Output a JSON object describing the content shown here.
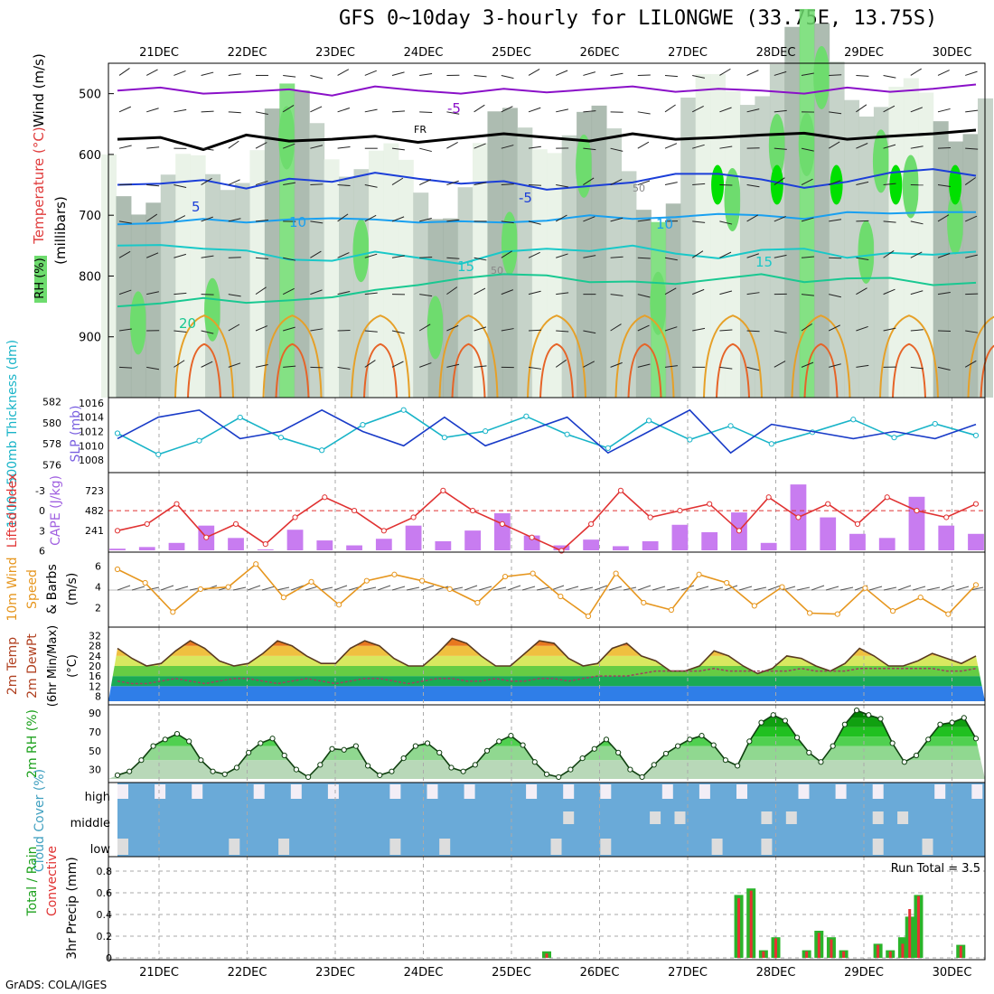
{
  "title": "GFS 0~10day 3-hourly for LILONGWE (33.75E, 13.75S)",
  "credit": "GrADS: COLA/IGES",
  "colors": {
    "rh_light": "#e6f1e4",
    "rh_mid": "#bccbbf",
    "rh_dark": "#9fb0a3",
    "rh_green": "#6edc6e",
    "rh_bright": "#00e000",
    "t_m5": "#8a10c8",
    "t_0": "#000000",
    "t_5": "#1b3ed8",
    "t_10": "#19a0f0",
    "t_15": "#19c8c8",
    "t_20": "#19c891",
    "t_25": "#e6a028",
    "t_30": "#e66428",
    "slp": "#1a3cc8",
    "thick": "#19b4c8",
    "cape_bar": "#c87cf0",
    "li": "#e03232",
    "wind10": "#e6961e",
    "cloud": "#6aaad8",
    "precip_total": "#2ab42a",
    "precip_conv": "#e63232"
  },
  "chart_data": {
    "type": "meteogram",
    "x_ticks": [
      "21DEC",
      "22DEC",
      "23DEC",
      "24DEC",
      "25DEC",
      "26DEC",
      "27DEC",
      "28DEC",
      "29DEC",
      "30DEC"
    ],
    "panels": {
      "upper": {
        "ylabel": "(millibars)",
        "side_labels": [
          "RH (%)",
          "Temperature (°C)",
          "Wind (m/s)"
        ],
        "yticks": [
          500,
          600,
          700,
          800,
          900
        ],
        "ylim": [
          1000,
          450
        ],
        "contour_labels": [
          "-5",
          "FR",
          "5",
          "-5",
          "10",
          "10",
          "15",
          "15",
          "20",
          "50",
          "50"
        ],
        "isotherms": [
          {
            "label": "-5",
            "y": [
              495,
              490,
              500,
              497,
              493,
              503,
              488,
              495,
              500,
              492,
              498,
              493,
              488,
              497,
              492,
              495,
              500,
              490,
              497,
              492,
              485
            ]
          },
          {
            "label": "0",
            "y": [
              575,
              572,
              592,
              568,
              578,
              575,
              570,
              580,
              573,
              566,
              572,
              578,
              566,
              575,
              572,
              568,
              565,
              575,
              570,
              566,
              560
            ]
          },
          {
            "label": "5",
            "y": [
              650,
              648,
              642,
              656,
              640,
              645,
              630,
              640,
              648,
              644,
              658,
              652,
              646,
              632,
              632,
              641,
              655,
              645,
              630,
              624,
              635
            ]
          },
          {
            "label": "10",
            "y": [
              715,
              713,
              706,
              712,
              707,
              705,
              707,
              712,
              710,
              712,
              709,
              700,
              706,
              703,
              698,
              700,
              706,
              695,
              697,
              695,
              695
            ]
          },
          {
            "label": "15",
            "y": [
              750,
              749,
              755,
              758,
              773,
              775,
              760,
              770,
              780,
              760,
              755,
              759,
              750,
              763,
              771,
              757,
              755,
              770,
              762,
              765,
              760
            ]
          },
          {
            "label": "20",
            "y": [
              850,
              845,
              836,
              844,
              840,
              835,
              823,
              815,
              804,
              797,
              799,
              810,
              809,
              813,
              805,
              797,
              810,
              804,
              803,
              815,
              811
            ]
          }
        ]
      },
      "slp_thickness": {
        "ylabel_left": "1000~500mb Thickness (dm)",
        "ylabel_right": "SLP (mb)",
        "thick_ticks": [
          576,
          578,
          580,
          582
        ],
        "slp_ticks": [
          1008,
          1010,
          1012,
          1014,
          1016
        ],
        "slp": [
          1011,
          1014,
          1015,
          1011,
          1012,
          1015,
          1012,
          1010,
          1014,
          1010,
          1012,
          1014,
          1009,
          1012,
          1015,
          1009,
          1013,
          1012,
          1011,
          1012,
          1011,
          1013
        ],
        "thickness": [
          579.0,
          577.0,
          578.3,
          580.5,
          578.6,
          577.4,
          579.8,
          581.2,
          578.6,
          579.2,
          580.6,
          578.9,
          577.6,
          580.2,
          578.4,
          579.7,
          578.0,
          579.1,
          580.3,
          578.6,
          579.9,
          578.8
        ]
      },
      "cape_li": {
        "ylabel_left": "Lifted Index",
        "ylabel_right": "CAPE (J/kg)",
        "li_ticks": [
          "-3",
          "0",
          "3",
          "6"
        ],
        "cape_ticks": [
          241,
          482,
          723
        ],
        "cape": [
          20,
          40,
          90,
          300,
          150,
          10,
          250,
          120,
          60,
          140,
          300,
          110,
          240,
          450,
          180,
          60,
          130,
          50,
          110,
          310,
          220,
          460,
          90,
          800,
          400,
          200,
          150,
          650,
          300,
          200
        ],
        "li": [
          3,
          2,
          -1,
          4,
          2,
          5,
          1,
          -2,
          0,
          3,
          1,
          -3,
          0,
          2,
          4,
          6,
          2,
          -3,
          1,
          0,
          -1,
          3,
          -2,
          1,
          -1,
          2,
          -2,
          0,
          1,
          -1
        ]
      },
      "wind10m": {
        "ylabel": "10m Wind Speed & Barbs (m/s)",
        "yticks": [
          2,
          4,
          6
        ],
        "speed": [
          5.7,
          4.4,
          1.6,
          3.8,
          4.0,
          6.2,
          3.0,
          4.5,
          2.3,
          4.6,
          5.2,
          4.6,
          3.8,
          2.5,
          5.0,
          5.3,
          3.1,
          1.2,
          5.3,
          2.5,
          1.8,
          5.2,
          4.4,
          2.2,
          4.0,
          1.5,
          1.4,
          3.9,
          1.7,
          3.0,
          1.4,
          4.2
        ]
      },
      "temp2m": {
        "ylabel": "2m Temp 2m DewPt (6hr Min/Max) (°C)",
        "yticks": [
          8,
          12,
          16,
          20,
          24,
          28,
          32
        ],
        "temp": [
          27,
          23,
          20,
          21,
          26,
          30,
          27,
          22,
          20,
          21,
          25,
          30,
          28,
          24,
          21,
          21,
          27,
          30,
          28,
          23,
          20,
          20,
          25,
          31,
          29,
          24,
          20,
          20,
          25,
          30,
          29,
          23,
          20,
          21,
          27,
          29,
          24,
          22,
          18,
          18,
          20,
          26,
          24,
          20,
          17,
          19,
          24,
          23,
          20,
          18,
          21,
          27,
          24,
          20,
          20,
          22,
          25,
          23,
          21,
          24
        ],
        "dewpt": [
          14,
          13,
          13,
          14,
          15,
          14,
          13,
          14,
          15,
          15,
          14,
          13,
          14,
          15,
          14,
          13,
          14,
          15,
          15,
          14,
          13,
          14,
          15,
          15,
          14,
          14,
          15,
          14,
          14,
          15,
          15,
          14,
          15,
          16,
          16,
          16,
          17,
          18,
          18,
          18,
          18,
          19,
          18,
          18,
          18,
          18,
          18,
          19,
          18,
          18,
          18,
          19,
          19,
          19,
          19,
          19,
          19,
          18,
          18,
          19
        ]
      },
      "rh2m": {
        "ylabel": "2m RH (%)",
        "yticks": [
          30,
          50,
          70,
          90
        ],
        "rh": [
          24,
          28,
          40,
          55,
          62,
          68,
          60,
          40,
          28,
          25,
          32,
          48,
          58,
          63,
          45,
          30,
          22,
          35,
          52,
          51,
          55,
          34,
          24,
          28,
          42,
          55,
          58,
          48,
          32,
          28,
          35,
          50,
          60,
          66,
          56,
          38,
          25,
          22,
          30,
          42,
          52,
          62,
          48,
          30,
          22,
          35,
          47,
          55,
          62,
          66,
          56,
          40,
          34,
          60,
          80,
          88,
          82,
          64,
          48,
          38,
          55,
          78,
          93,
          88,
          84,
          58,
          38,
          45,
          62,
          78,
          80,
          85,
          63
        ]
      },
      "cloud": {
        "ylabel": "Cloud Cover (%)",
        "levels": [
          "high",
          "middle",
          "low"
        ]
      },
      "precip": {
        "ylabel": "3hr Precip (mm)",
        "side_labels": [
          "Total / Rain",
          "Convective"
        ],
        "yticks": [
          0,
          0.2,
          0.4,
          0.6,
          0.8
        ],
        "ylim": [
          0,
          0.9
        ],
        "run_total_label": "Run Total = 3.5",
        "bars": [
          {
            "x": 4.4,
            "total": 0.06,
            "conv": 0.04
          },
          {
            "x": 6.58,
            "total": 0.58,
            "conv": 0.55
          },
          {
            "x": 6.72,
            "total": 0.64,
            "conv": 0.62
          },
          {
            "x": 6.86,
            "total": 0.07,
            "conv": 0.06
          },
          {
            "x": 7.0,
            "total": 0.19,
            "conv": 0.18
          },
          {
            "x": 7.35,
            "total": 0.07,
            "conv": 0.06
          },
          {
            "x": 7.49,
            "total": 0.25,
            "conv": 0.23
          },
          {
            "x": 7.63,
            "total": 0.19,
            "conv": 0.17
          },
          {
            "x": 7.77,
            "total": 0.07,
            "conv": 0.06
          },
          {
            "x": 8.16,
            "total": 0.13,
            "conv": 0.12
          },
          {
            "x": 8.3,
            "total": 0.07,
            "conv": 0.06
          },
          {
            "x": 8.44,
            "total": 0.19,
            "conv": 0.13
          },
          {
            "x": 8.52,
            "total": 0.38,
            "conv": 0.45
          },
          {
            "x": 8.62,
            "total": 0.58,
            "conv": 0.57
          },
          {
            "x": 9.1,
            "total": 0.12,
            "conv": 0.11
          }
        ]
      }
    }
  }
}
